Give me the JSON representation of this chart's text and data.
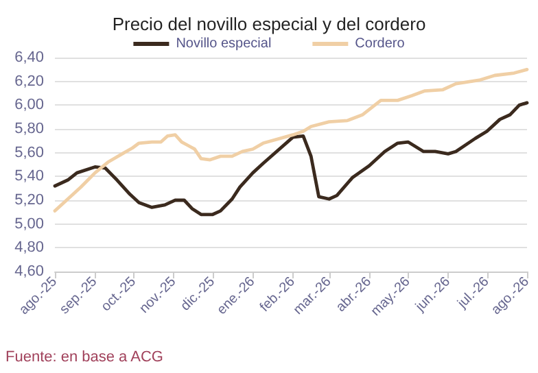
{
  "chart_data": {
    "type": "line",
    "title": "Precio del novillo especial y del cordero",
    "annotations": [
      "Fuente: en base a ACG"
    ],
    "series": [
      {
        "name": "Novillo especial",
        "color": "#3b2a1e",
        "x": [
          "2025-08-01",
          "2025-08-11",
          "2025-08-18",
          "2025-09-01",
          "2025-09-09",
          "2025-09-18",
          "2025-09-28",
          "2025-10-05",
          "2025-10-15",
          "2025-10-25",
          "2025-11-02",
          "2025-11-09",
          "2025-11-15",
          "2025-11-22",
          "2025-12-01",
          "2025-12-07",
          "2025-12-16",
          "2025-12-22",
          "2026-01-01",
          "2026-01-09",
          "2026-02-01",
          "2026-02-09",
          "2026-02-15",
          "2026-02-21",
          "2026-03-01",
          "2026-03-07",
          "2026-03-19",
          "2026-04-01",
          "2026-04-13",
          "2026-04-23",
          "2026-05-01",
          "2026-05-13",
          "2026-05-22",
          "2026-06-01",
          "2026-06-07",
          "2026-06-22",
          "2026-07-01",
          "2026-07-11",
          "2026-07-19",
          "2026-07-26",
          "2026-08-01"
        ],
        "values": [
          5.32,
          5.37,
          5.43,
          5.48,
          5.47,
          5.37,
          5.25,
          5.18,
          5.14,
          5.16,
          5.2,
          5.2,
          5.13,
          5.08,
          5.08,
          5.11,
          5.21,
          5.31,
          5.43,
          5.51,
          5.73,
          5.74,
          5.57,
          5.23,
          5.21,
          5.24,
          5.39,
          5.49,
          5.61,
          5.68,
          5.69,
          5.61,
          5.61,
          5.59,
          5.61,
          5.72,
          5.78,
          5.88,
          5.92,
          6.0,
          6.02
        ]
      },
      {
        "name": "Cordero",
        "color": "#f0cfa5",
        "x": [
          "2025-08-01",
          "2025-08-11",
          "2025-08-21",
          "2025-09-01",
          "2025-09-11",
          "2025-09-22",
          "2025-09-30",
          "2025-10-05",
          "2025-10-15",
          "2025-10-22",
          "2025-10-27",
          "2025-11-02",
          "2025-11-07",
          "2025-11-12",
          "2025-11-17",
          "2025-11-22",
          "2025-11-29",
          "2025-12-07",
          "2025-12-16",
          "2025-12-24",
          "2026-01-01",
          "2026-01-09",
          "2026-02-01",
          "2026-02-09",
          "2026-02-15",
          "2026-03-01",
          "2026-03-15",
          "2026-03-27",
          "2026-04-10",
          "2026-04-23",
          "2026-05-04",
          "2026-05-14",
          "2026-05-28",
          "2026-06-07",
          "2026-06-25",
          "2026-07-07",
          "2026-07-22",
          "2026-08-01"
        ],
        "values": [
          5.11,
          5.21,
          5.31,
          5.43,
          5.52,
          5.59,
          5.64,
          5.68,
          5.69,
          5.69,
          5.74,
          5.75,
          5.69,
          5.66,
          5.63,
          5.55,
          5.54,
          5.57,
          5.57,
          5.61,
          5.63,
          5.68,
          5.75,
          5.78,
          5.82,
          5.86,
          5.87,
          5.92,
          6.04,
          6.04,
          6.08,
          6.12,
          6.13,
          6.18,
          6.21,
          6.25,
          6.27,
          6.3
        ]
      }
    ],
    "xlim": [
      "2025-08-01",
      "2026-08-01"
    ],
    "xticks": [
      {
        "value": "2025-08-01",
        "label": "ago.-25"
      },
      {
        "value": "2025-09-01",
        "label": "sep.-25"
      },
      {
        "value": "2025-10-01",
        "label": "oct.-25"
      },
      {
        "value": "2025-11-01",
        "label": "nov.-25"
      },
      {
        "value": "2025-12-01",
        "label": "dic.-25"
      },
      {
        "value": "2026-01-01",
        "label": "ene.-26"
      },
      {
        "value": "2026-02-01",
        "label": "feb.-26"
      },
      {
        "value": "2026-03-01",
        "label": "mar.-26"
      },
      {
        "value": "2026-04-01",
        "label": "abr.-26"
      },
      {
        "value": "2026-05-01",
        "label": "may.-26"
      },
      {
        "value": "2026-06-01",
        "label": "jun.-26"
      },
      {
        "value": "2026-07-01",
        "label": "jul.-26"
      },
      {
        "value": "2026-08-01",
        "label": "ago.-26"
      }
    ],
    "ylim": [
      4.6,
      6.4
    ],
    "yticks": [
      {
        "value": 4.6,
        "label": "4,60"
      },
      {
        "value": 4.8,
        "label": "4,80"
      },
      {
        "value": 5.0,
        "label": "5,00"
      },
      {
        "value": 5.2,
        "label": "5,20"
      },
      {
        "value": 5.4,
        "label": "5,40"
      },
      {
        "value": 5.6,
        "label": "5,60"
      },
      {
        "value": 5.8,
        "label": "5,80"
      },
      {
        "value": 6.0,
        "label": "6,00"
      },
      {
        "value": 6.2,
        "label": "6,20"
      },
      {
        "value": 6.4,
        "label": "6,40"
      }
    ],
    "grid": "y",
    "legend": "top",
    "marker": "none",
    "line_style": "solid"
  }
}
